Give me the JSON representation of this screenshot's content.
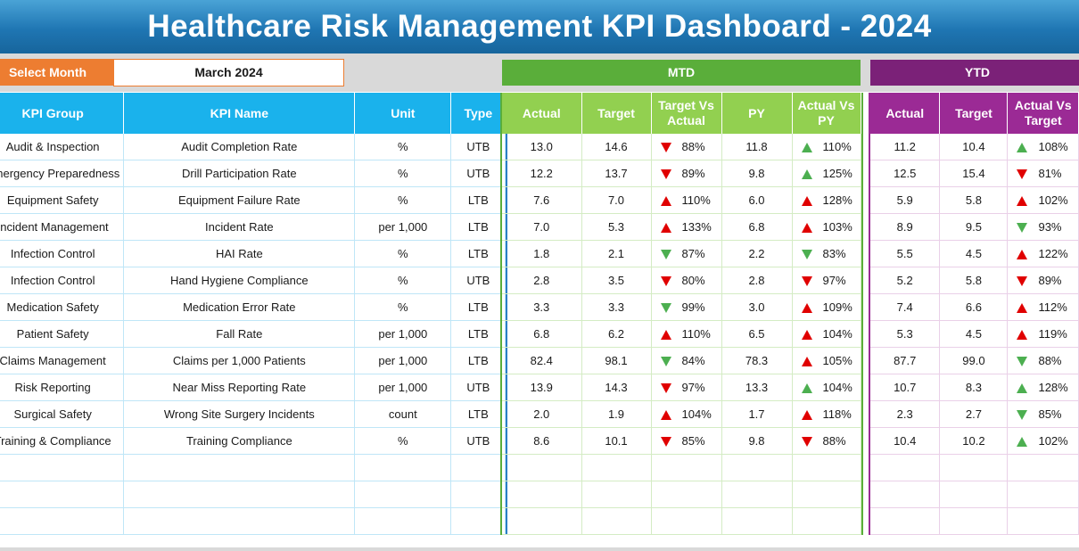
{
  "title": "Healthcare Risk Management KPI Dashboard - 2024",
  "controls": {
    "select_label": "Select Month",
    "selected_month": "March 2024",
    "mtd_label": "MTD",
    "ytd_label": "YTD"
  },
  "columns": {
    "kpi_group": "KPI Group",
    "kpi_name": "KPI Name",
    "unit": "Unit",
    "type": "Type",
    "mtd": [
      "Actual",
      "Target",
      "Target Vs Actual",
      "PY",
      "Actual Vs PY"
    ],
    "ytd": [
      "Actual",
      "Target",
      "Actual Vs Target"
    ]
  },
  "colors": {
    "up_bad": "#e00000",
    "up_good": "#4caf50",
    "header_blue": "#1ab2ec",
    "mtd_green": "#5aae3a",
    "ytd_purple": "#7b2178"
  },
  "rows": [
    {
      "group": "Audit & Inspection",
      "name": "Audit Completion Rate",
      "unit": "%",
      "type": "UTB",
      "mtd_actual": "13.0",
      "mtd_target": "14.6",
      "tva": "88%",
      "tva_dir": "down",
      "tva_color": "red",
      "py": "11.8",
      "avp": "110%",
      "avp_dir": "up",
      "avp_color": "green",
      "ytd_actual": "11.2",
      "ytd_target": "10.4",
      "avt": "108%",
      "avt_dir": "up",
      "avt_color": "green"
    },
    {
      "group": "Emergency Preparedness",
      "name": "Drill Participation Rate",
      "unit": "%",
      "type": "UTB",
      "mtd_actual": "12.2",
      "mtd_target": "13.7",
      "tva": "89%",
      "tva_dir": "down",
      "tva_color": "red",
      "py": "9.8",
      "avp": "125%",
      "avp_dir": "up",
      "avp_color": "green",
      "ytd_actual": "12.5",
      "ytd_target": "15.4",
      "avt": "81%",
      "avt_dir": "down",
      "avt_color": "red"
    },
    {
      "group": "Equipment Safety",
      "name": "Equipment Failure Rate",
      "unit": "%",
      "type": "LTB",
      "mtd_actual": "7.6",
      "mtd_target": "7.0",
      "tva": "110%",
      "tva_dir": "up",
      "tva_color": "red",
      "py": "6.0",
      "avp": "128%",
      "avp_dir": "up",
      "avp_color": "red",
      "ytd_actual": "5.9",
      "ytd_target": "5.8",
      "avt": "102%",
      "avt_dir": "up",
      "avt_color": "red"
    },
    {
      "group": "Incident Management",
      "name": "Incident Rate",
      "unit": "per 1,000",
      "type": "LTB",
      "mtd_actual": "7.0",
      "mtd_target": "5.3",
      "tva": "133%",
      "tva_dir": "up",
      "tva_color": "red",
      "py": "6.8",
      "avp": "103%",
      "avp_dir": "up",
      "avp_color": "red",
      "ytd_actual": "8.9",
      "ytd_target": "9.5",
      "avt": "93%",
      "avt_dir": "down",
      "avt_color": "green"
    },
    {
      "group": "Infection Control",
      "name": "HAI Rate",
      "unit": "%",
      "type": "LTB",
      "mtd_actual": "1.8",
      "mtd_target": "2.1",
      "tva": "87%",
      "tva_dir": "down",
      "tva_color": "green",
      "py": "2.2",
      "avp": "83%",
      "avp_dir": "down",
      "avp_color": "green",
      "ytd_actual": "5.5",
      "ytd_target": "4.5",
      "avt": "122%",
      "avt_dir": "up",
      "avt_color": "red"
    },
    {
      "group": "Infection Control",
      "name": "Hand Hygiene Compliance",
      "unit": "%",
      "type": "UTB",
      "mtd_actual": "2.8",
      "mtd_target": "3.5",
      "tva": "80%",
      "tva_dir": "down",
      "tva_color": "red",
      "py": "2.8",
      "avp": "97%",
      "avp_dir": "down",
      "avp_color": "red",
      "ytd_actual": "5.2",
      "ytd_target": "5.8",
      "avt": "89%",
      "avt_dir": "down",
      "avt_color": "red"
    },
    {
      "group": "Medication Safety",
      "name": "Medication Error Rate",
      "unit": "%",
      "type": "LTB",
      "mtd_actual": "3.3",
      "mtd_target": "3.3",
      "tva": "99%",
      "tva_dir": "down",
      "tva_color": "green",
      "py": "3.0",
      "avp": "109%",
      "avp_dir": "up",
      "avp_color": "red",
      "ytd_actual": "7.4",
      "ytd_target": "6.6",
      "avt": "112%",
      "avt_dir": "up",
      "avt_color": "red"
    },
    {
      "group": "Patient Safety",
      "name": "Fall Rate",
      "unit": "per 1,000",
      "type": "LTB",
      "mtd_actual": "6.8",
      "mtd_target": "6.2",
      "tva": "110%",
      "tva_dir": "up",
      "tva_color": "red",
      "py": "6.5",
      "avp": "104%",
      "avp_dir": "up",
      "avp_color": "red",
      "ytd_actual": "5.3",
      "ytd_target": "4.5",
      "avt": "119%",
      "avt_dir": "up",
      "avt_color": "red"
    },
    {
      "group": "Claims Management",
      "name": "Claims per 1,000 Patients",
      "unit": "per 1,000",
      "type": "LTB",
      "mtd_actual": "82.4",
      "mtd_target": "98.1",
      "tva": "84%",
      "tva_dir": "down",
      "tva_color": "green",
      "py": "78.3",
      "avp": "105%",
      "avp_dir": "up",
      "avp_color": "red",
      "ytd_actual": "87.7",
      "ytd_target": "99.0",
      "avt": "88%",
      "avt_dir": "down",
      "avt_color": "green"
    },
    {
      "group": "Risk Reporting",
      "name": "Near Miss Reporting Rate",
      "unit": "per 1,000",
      "type": "UTB",
      "mtd_actual": "13.9",
      "mtd_target": "14.3",
      "tva": "97%",
      "tva_dir": "down",
      "tva_color": "red",
      "py": "13.3",
      "avp": "104%",
      "avp_dir": "up",
      "avp_color": "green",
      "ytd_actual": "10.7",
      "ytd_target": "8.3",
      "avt": "128%",
      "avt_dir": "up",
      "avt_color": "green"
    },
    {
      "group": "Surgical Safety",
      "name": "Wrong Site Surgery Incidents",
      "unit": "count",
      "type": "LTB",
      "mtd_actual": "2.0",
      "mtd_target": "1.9",
      "tva": "104%",
      "tva_dir": "up",
      "tva_color": "red",
      "py": "1.7",
      "avp": "118%",
      "avp_dir": "up",
      "avp_color": "red",
      "ytd_actual": "2.3",
      "ytd_target": "2.7",
      "avt": "85%",
      "avt_dir": "down",
      "avt_color": "green"
    },
    {
      "group": "Training & Compliance",
      "name": "Training Compliance",
      "unit": "%",
      "type": "UTB",
      "mtd_actual": "8.6",
      "mtd_target": "10.1",
      "tva": "85%",
      "tva_dir": "down",
      "tva_color": "red",
      "py": "9.8",
      "avp": "88%",
      "avp_dir": "down",
      "avp_color": "red",
      "ytd_actual": "10.4",
      "ytd_target": "10.2",
      "avt": "102%",
      "avt_dir": "up",
      "avt_color": "green"
    }
  ]
}
